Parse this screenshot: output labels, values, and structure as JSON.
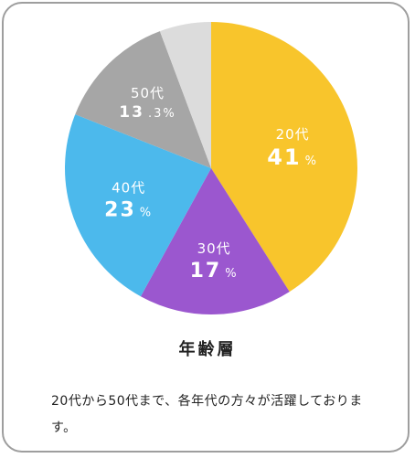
{
  "chart_data": {
    "type": "pie",
    "title": "年齢層",
    "slices": [
      {
        "label": "20代",
        "value": 41,
        "display_value": "41",
        "pct_sign": "%",
        "color": "#f8c52c"
      },
      {
        "label": "30代",
        "value": 17,
        "display_value": "17",
        "pct_sign": "%",
        "color": "#9b57cf"
      },
      {
        "label": "40代",
        "value": 23,
        "display_value": "23",
        "pct_sign": "%",
        "color": "#4cb9ec"
      },
      {
        "label": "50代",
        "value": 13.3,
        "display_value": "13",
        "pct_sign": ".3%",
        "color": "#a6a6a6"
      },
      {
        "label": "",
        "value": 5.7,
        "display_value": "",
        "pct_sign": "",
        "color": "#dcdcdc"
      }
    ]
  },
  "caption": {
    "title": "年齢層",
    "description": "20代から50代まで、各年代の方々が活躍しております。"
  }
}
